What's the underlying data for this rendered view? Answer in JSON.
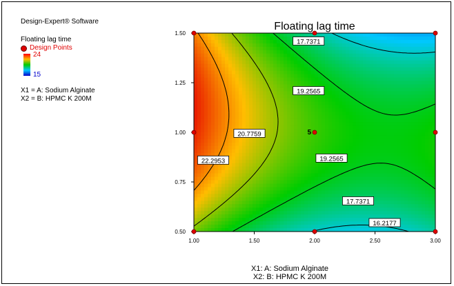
{
  "sidebar": {
    "software": "Design-Expert® Software",
    "response_label": "Floating lag time",
    "legend_points": "Design Points",
    "scale_max": "24",
    "scale_min": "15",
    "factor1": "X1 = A: Sodium Alginate",
    "factor2": "X2 = B: HPMC K 200M"
  },
  "colors": {
    "high": "#e00000",
    "low": "#0000cc",
    "design_point": "#e00000",
    "contour_line": "#000000"
  },
  "chart_data": {
    "type": "contour",
    "title": "Floating lag time",
    "xlabel": "X1: A: Sodium Alginate",
    "ylabel": "X2: B: HPMC K 200M",
    "xlim": [
      1.0,
      3.0
    ],
    "ylim": [
      0.5,
      1.5
    ],
    "x_ticks": [
      "1.00",
      "1.50",
      "2.00",
      "2.50",
      "3.00"
    ],
    "y_ticks": [
      "0.50",
      "0.75",
      "1.00",
      "1.25",
      "1.50"
    ],
    "color_range": [
      15,
      24
    ],
    "contour_levels": [
      16.2177,
      17.7371,
      19.2565,
      20.7759,
      22.2953
    ],
    "contour_labels": [
      {
        "text": "17.7371",
        "x": 1.95,
        "y": 1.46
      },
      {
        "text": "19.2565",
        "x": 1.95,
        "y": 1.21
      },
      {
        "text": "20.7759",
        "x": 1.46,
        "y": 0.995
      },
      {
        "text": "22.2953",
        "x": 1.16,
        "y": 0.86
      },
      {
        "text": "19.2565",
        "x": 2.14,
        "y": 0.87
      },
      {
        "text": "17.7371",
        "x": 2.36,
        "y": 0.655
      },
      {
        "text": "16.2177",
        "x": 2.58,
        "y": 0.545
      }
    ],
    "design_points": [
      {
        "x": 1.0,
        "y": 0.5
      },
      {
        "x": 2.0,
        "y": 0.5
      },
      {
        "x": 3.0,
        "y": 0.5
      },
      {
        "x": 1.0,
        "y": 1.0
      },
      {
        "x": 2.0,
        "y": 1.0,
        "label": "5"
      },
      {
        "x": 3.0,
        "y": 1.0
      },
      {
        "x": 1.0,
        "y": 1.5
      },
      {
        "x": 2.0,
        "y": 1.5
      },
      {
        "x": 3.0,
        "y": 1.5
      }
    ],
    "grid": false
  }
}
